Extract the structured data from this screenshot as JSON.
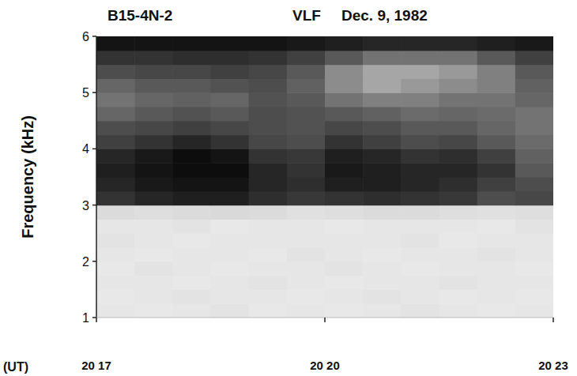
{
  "chart_data": {
    "type": "heatmap",
    "title": "B15-4N-2",
    "annotations": [
      "VLF",
      "Dec. 9, 1982"
    ],
    "xlabel": "(UT)",
    "ylabel": "Frequency (kHz)",
    "x": [
      17,
      17.5,
      18,
      18.5,
      19,
      19.5,
      20,
      20.5,
      21,
      21.5,
      22,
      22.5,
      23
    ],
    "y": [
      1,
      1.25,
      1.5,
      1.75,
      2,
      2.25,
      2.5,
      2.75,
      3,
      3.25,
      3.5,
      3.75,
      4,
      4.25,
      4.5,
      4.75,
      5,
      5.25,
      5.5,
      5.75,
      6
    ],
    "xlim": [
      17,
      23
    ],
    "ylim": [
      1,
      6
    ],
    "xticks": [
      {
        "value": 17,
        "label": "20 17"
      },
      {
        "value": 20,
        "label": "20 20"
      },
      {
        "value": 23,
        "label": "20 23"
      }
    ],
    "yticks": [
      1,
      2,
      3,
      4,
      5,
      6
    ],
    "zlim": [
      0,
      100
    ],
    "cells": [
      [
        10,
        9,
        10,
        11,
        9,
        10,
        9,
        10,
        11,
        10,
        9,
        10
      ],
      [
        9,
        10,
        11,
        10,
        10,
        9,
        10,
        11,
        10,
        9,
        10,
        9
      ],
      [
        10,
        10,
        9,
        10,
        11,
        10,
        9,
        10,
        10,
        11,
        10,
        10
      ],
      [
        9,
        11,
        10,
        9,
        10,
        10,
        11,
        10,
        9,
        10,
        10,
        9
      ],
      [
        10,
        9,
        10,
        10,
        9,
        11,
        10,
        9,
        10,
        10,
        11,
        10
      ],
      [
        11,
        10,
        9,
        10,
        10,
        10,
        10,
        10,
        11,
        9,
        10,
        10
      ],
      [
        10,
        10,
        11,
        9,
        10,
        10,
        9,
        10,
        10,
        10,
        9,
        11
      ],
      [
        14,
        13,
        14,
        15,
        14,
        12,
        13,
        14,
        14,
        13,
        12,
        13
      ],
      [
        80,
        85,
        88,
        88,
        82,
        78,
        80,
        82,
        80,
        78,
        70,
        72
      ],
      [
        85,
        90,
        92,
        92,
        85,
        82,
        88,
        88,
        85,
        82,
        75,
        70
      ],
      [
        88,
        92,
        95,
        95,
        85,
        80,
        90,
        88,
        85,
        85,
        80,
        65
      ],
      [
        85,
        90,
        95,
        92,
        80,
        78,
        88,
        85,
        80,
        82,
        75,
        62
      ],
      [
        75,
        80,
        85,
        80,
        72,
        70,
        80,
        75,
        70,
        72,
        65,
        58
      ],
      [
        70,
        72,
        75,
        72,
        70,
        68,
        72,
        70,
        65,
        65,
        60,
        55
      ],
      [
        60,
        65,
        68,
        65,
        70,
        68,
        65,
        62,
        58,
        60,
        58,
        55
      ],
      [
        55,
        60,
        62,
        60,
        68,
        65,
        55,
        50,
        50,
        55,
        55,
        60
      ],
      [
        60,
        65,
        65,
        68,
        70,
        62,
        45,
        35,
        40,
        45,
        50,
        62
      ],
      [
        70,
        72,
        72,
        75,
        72,
        65,
        45,
        35,
        35,
        40,
        50,
        65
      ],
      [
        80,
        80,
        82,
        82,
        80,
        75,
        65,
        55,
        55,
        55,
        65,
        75
      ],
      [
        92,
        92,
        92,
        92,
        92,
        90,
        88,
        85,
        85,
        85,
        88,
        90
      ]
    ],
    "grid": false
  }
}
